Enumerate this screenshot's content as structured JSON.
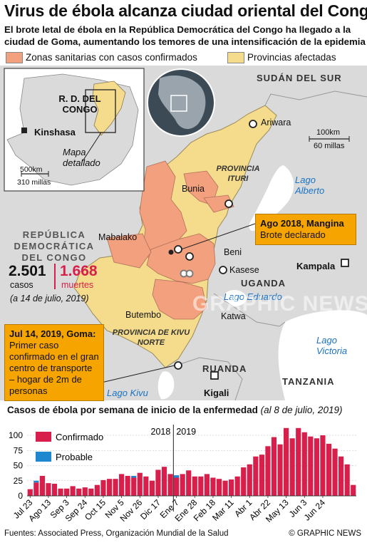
{
  "header": {
    "title": "Virus de ébola alcanza ciudad oriental del Congo",
    "subtitle_line1": "El brote letal de ébola en la República Democrática del Congo ha llegado a la",
    "subtitle_line2": "ciudad de Goma, aumentando los temores de una intensificación de la epidemia"
  },
  "legend": {
    "zones_label": "Zonas sanitarias con casos confirmados",
    "provinces_label": "Provincias afectadas"
  },
  "colors": {
    "zones": "#f2a07e",
    "provinces": "#f5dc8c",
    "land": "#dadada",
    "water": "#ffffff",
    "confirmed": "#d81e4a",
    "probable": "#1f86d0",
    "callout": "#f6a400",
    "lake_text": "#1a73c6"
  },
  "map": {
    "inset": {
      "country_label": "R. D. DEL CONGO",
      "capital": "Kinshasa",
      "detail_label": "Mapa detallado",
      "scale_km": "500km",
      "scale_mi": "310 millas"
    },
    "labels": {
      "sudan": "SUDÁN DEL SUR",
      "uganda": "UGANDA",
      "ruanda": "RUANDA",
      "tanzania": "TANZANIA",
      "provincia_ituri": "PROVINCIA ITURI",
      "provincia_kivu": "PROVINCIA DE KIVU NORTE",
      "rdc": "REPÚBLICA DEMOCRÁTICA DEL CONGO"
    },
    "cities": {
      "ariwara": "Ariwara",
      "bunia": "Bunia",
      "mabalako": "Mabalako",
      "beni": "Beni",
      "kasese": "Kasese",
      "butembo": "Butembo",
      "katwa": "Katwa",
      "kampala": "Kampala",
      "kigali": "Kigali"
    },
    "lakes": {
      "alberto": "Lago Alberto",
      "eduardo": "Lago Eduardo",
      "victoria": "Lago Victoria",
      "kivu": "Lago Kivu"
    },
    "scale": {
      "km": "100km",
      "mi": "60 millas"
    },
    "stats": {
      "cases_value": "2.501",
      "cases_label": "casos",
      "deaths_value": "1.668",
      "deaths_label": "muertes",
      "date_note": "(a 14 de julio, 2019)"
    },
    "callout_mangina": {
      "heading": "Ago 2018, Mangina",
      "text": "Brote declarado"
    },
    "callout_goma": {
      "heading": "Jul 14, 2019, Goma:",
      "text": "Primer caso confirmado en el gran centro de transporte – hogar de 2m de personas"
    },
    "watermark": "GRAPHIC NEWS"
  },
  "chart_data": {
    "type": "bar",
    "title": "Casos de ébola por semana de inicio de la enfermedad",
    "title_note": "(al 8 de julio, 2019)",
    "ylim": [
      0,
      120
    ],
    "yticks": [
      0,
      25,
      50,
      75,
      100
    ],
    "tick_labels": [
      "Jul 23",
      "Ago 13",
      "Sep 3",
      "Sep 24",
      "Oct 15",
      "Nov 5",
      "Nov 26",
      "Dic 17",
      "Ene 7",
      "Ene 28",
      "Feb 18",
      "Mar 11",
      "Abr 1",
      "Abr 22",
      "May 13",
      "Jun 3",
      "Jun 24"
    ],
    "year_markers": [
      "2018",
      "2019"
    ],
    "series": [
      {
        "name": "Confirmado",
        "values": [
          11,
          22,
          33,
          21,
          20,
          12,
          12,
          16,
          12,
          14,
          12,
          18,
          26,
          28,
          28,
          36,
          33,
          30,
          38,
          32,
          25,
          43,
          48,
          36,
          30,
          36,
          42,
          32,
          32,
          36,
          30,
          28,
          25,
          27,
          32,
          47,
          52,
          65,
          68,
          82,
          97,
          85,
          112,
          95,
          112,
          105,
          98,
          95,
          100,
          86,
          78,
          65,
          52,
          18
        ]
      },
      {
        "name": "Probable",
        "values": [
          0,
          3,
          0,
          0,
          0,
          0,
          0,
          0,
          0,
          0,
          0,
          0,
          0,
          0,
          0,
          0,
          0,
          3,
          0,
          0,
          0,
          0,
          0,
          0,
          4,
          0,
          0,
          0,
          0,
          0,
          0,
          0,
          0,
          0,
          0,
          0,
          0,
          0,
          0,
          0,
          0,
          0,
          0,
          0,
          0,
          0,
          0,
          0,
          0,
          0,
          0,
          0,
          0,
          0
        ]
      }
    ]
  },
  "footer": {
    "sources": "Fuentes: Associated Press, Organización Mundial de la Salud",
    "brand": "© GRAPHIC NEWS"
  }
}
